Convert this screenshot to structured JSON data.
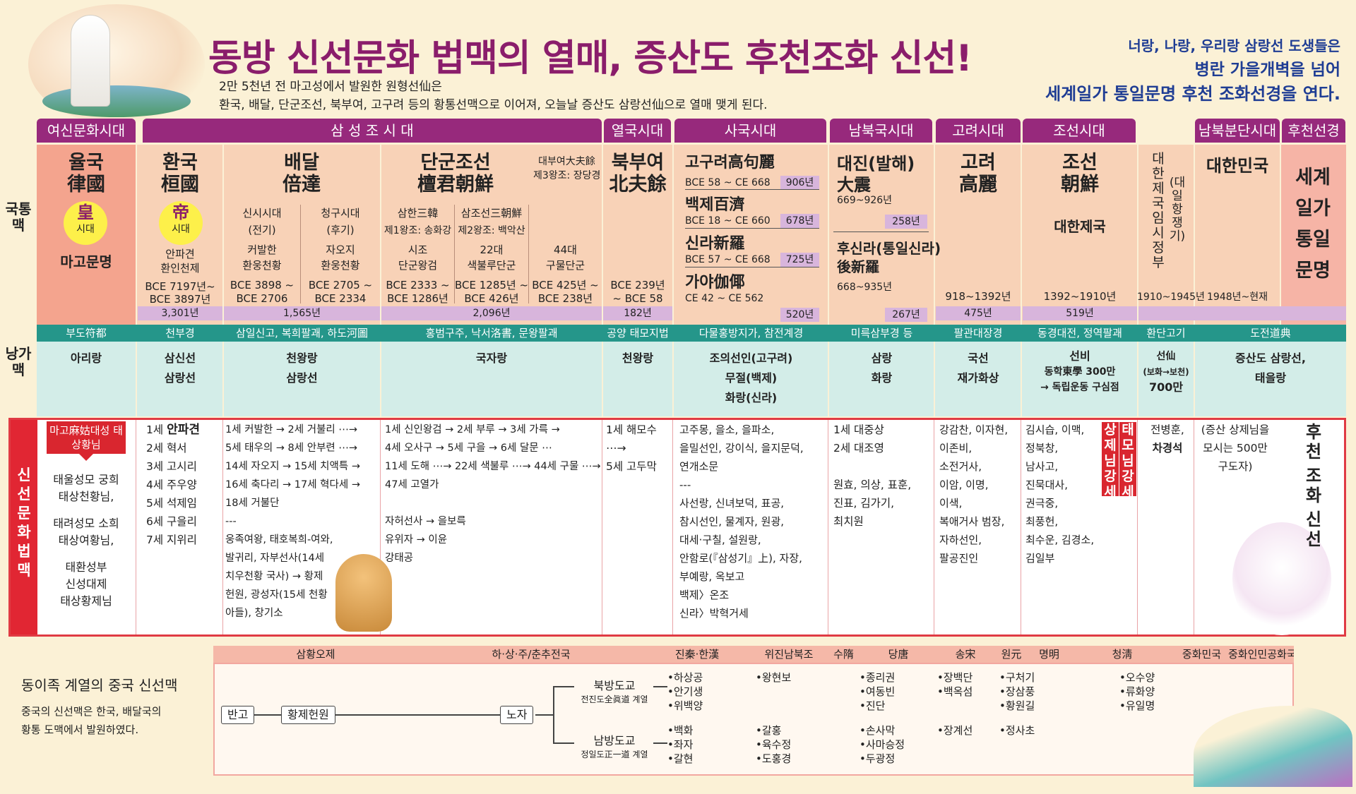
{
  "header": {
    "title": "동방 신선문화 법맥의 열매, 증산도 후천조화 신선!",
    "subtitle1": "2만 5천년 전 마고성에서 발원한 원형선仙은",
    "subtitle2": "환국, 배달, 단군조선, 북부여, 고구려 등의 황통선맥으로 이어져, 오늘날 증산도 삼랑선仙으로 열매 맺게 된다.",
    "right_lines": [
      "너랑, 나랑, 우리랑 삼랑선 도생들은",
      "병란 가을개벽을 넘어",
      "세계일가 통일문명 후천 조화선경을 연다."
    ]
  },
  "row_labels": {
    "national": "국통맥",
    "nangga": "낭가맥",
    "sinseon": "신선문화 법맥"
  },
  "eras": [
    "여신문화시대",
    "삼 성 조 시 대",
    "열국시대",
    "사국시대",
    "남북국시대",
    "고려시대",
    "조선시대",
    "",
    "남북분단시대",
    "후천선경"
  ],
  "nations": {
    "yulguk": {
      "name": "율국",
      "hanja": "律國",
      "circle_main": "皇",
      "circle_sub": "시대",
      "culture": "마고문명"
    },
    "hwanguk": {
      "name": "환국",
      "hanja": "桓國",
      "circle_main": "帝",
      "circle_sub": "시대",
      "ruler": "안파견",
      "ruler2": "환인천제",
      "years1": "BCE 7197년~",
      "years2": "BCE 3897년",
      "dur": "3,301년"
    },
    "baedal": {
      "name": "배달",
      "hanja": "倍達",
      "p1": "신시시대",
      "p1s": "(전기)",
      "p1a": "커발한",
      "p1b": "환웅천황",
      "p1y1": "BCE 3898 ~",
      "p1y2": "BCE 2706",
      "p2": "청구시대",
      "p2s": "(후기)",
      "p2a": "자오지",
      "p2b": "환웅천황",
      "p2y1": "BCE 2705 ~",
      "p2y2": "BCE 2334",
      "dur": "1,565년"
    },
    "dangun": {
      "name": "단군조선",
      "hanja": "檀君朝鮮",
      "bubuyeo": "대부여大夫餘",
      "bubuyeo2": "제3왕조: 장당경",
      "c1": "삼한三韓",
      "c1s": "제1왕조: 송화강",
      "c1a": "시조",
      "c1b": "단군왕검",
      "c1y1": "BCE 2333 ~",
      "c1y2": "BCE 1286년",
      "c2": "삼조선三朝鮮",
      "c2s": "제2왕조: 백악산",
      "c2a": "22대",
      "c2b": "색불루단군",
      "c2y1": "BCE 1285년 ~",
      "c2y2": "BCE 426년",
      "c3a": "44대",
      "c3b": "구물단군",
      "c3y1": "BCE 425년 ~",
      "c3y2": "BCE 238년",
      "dur": "2,096년"
    },
    "bukbuyeo": {
      "name": "북부여",
      "hanja": "北夫餘",
      "y1": "BCE 239년",
      "y2": "~ BCE 58",
      "dur": "182년"
    },
    "four": {
      "goguryeo": "고구려高句麗",
      "g_y": "BCE 58 ~ CE 668",
      "g_d": "906년",
      "baekje": "백제百濟",
      "b_y": "BCE 18 ~ CE 660",
      "b_d": "678년",
      "silla": "신라新羅",
      "s_y": "BCE 57 ~ CE 668",
      "s_d": "725년",
      "gaya": "가야伽倻",
      "ga_y": "CE 42 ~ CE 562",
      "ga_d": "520년"
    },
    "nb": {
      "name": "대진(발해)",
      "hanja": "大震",
      "y": "669~926년",
      "d": "258년",
      "name2": "후신라(통일신라)",
      "hanja2": "後新羅",
      "y2": "668~935년",
      "d2": "267년"
    },
    "goryeo": {
      "name": "고려",
      "hanja": "高麗",
      "y": "918~1392년",
      "d": "475년"
    },
    "joseon": {
      "name": "조선",
      "hanja": "朝鮮",
      "sub": "대한제국",
      "y": "1392~1910년",
      "d": "519년"
    },
    "provisional": {
      "name": "대한제국임시정부",
      "sub": "(대일항쟁기)",
      "y": "1910~1945년"
    },
    "korea": {
      "name": "대한민국",
      "y": "1948년~현재"
    },
    "world": {
      "lines": [
        "세계",
        "일가",
        "통일",
        "문명"
      ]
    }
  },
  "nangga_teal": [
    "부도符都",
    "천부경",
    "삼일신고, 복희팔괘, 하도河圖",
    "홍범구주, 낙서洛書, 문왕팔괘",
    "공양 태모지법",
    "다물홍방지가, 참전계경",
    "미륵삼부경 등",
    "팔관대장경",
    "동경대전, 정역팔괘",
    "환단고기",
    "도전道典"
  ],
  "nangga": {
    "a": [
      "아리랑"
    ],
    "b": [
      "삼신선",
      "삼랑선"
    ],
    "c": [
      "천왕랑",
      "삼랑선"
    ],
    "d": [
      "국자랑"
    ],
    "e": [
      "천왕랑"
    ],
    "f": [
      "조의선인(고구려)",
      "무절(백제)",
      "화랑(신라)"
    ],
    "g": [
      "삼랑",
      "화랑"
    ],
    "h": [
      "국선",
      "재가화상"
    ],
    "i": [
      "선비",
      "동학東學 300만",
      "→ 독립운동 구심점"
    ],
    "j": [
      "선仙",
      "(보화→보천)",
      "700만"
    ],
    "k": [
      "증산도 삼랑선,",
      "태을랑"
    ]
  },
  "sinseon": {
    "mago_head": "마고麻姑대성 태상황님",
    "mago_list": [
      "태울성모 궁희",
      "태상천황님,",
      "태려성모 소희",
      "태상여황님,",
      "태환성부",
      "신성대제",
      "태상황제님"
    ],
    "hwanguk": [
      [
        "1세 ",
        "안파견"
      ],
      [
        "2세 혁서",
        ""
      ],
      [
        "3세 고시리",
        ""
      ],
      [
        "4세 주우양",
        ""
      ],
      [
        "5세 석제임",
        ""
      ],
      [
        "6세 구을리",
        ""
      ],
      [
        "7세 지위리",
        ""
      ]
    ],
    "baedal": [
      "1세 커발한 → 2세 거불리 ⋯→",
      "5세 태우의 → 8세 안부련 ⋯→",
      "14세 자오지 → 15세 치액특 →",
      "16세 축다리 → 17세 혁다세 →",
      "18세 거불단",
      "---",
      "웅족여왕, 태호복희-여와,",
      "발귀리, 자부선사(14세",
      "치우천황 국사) → 황제",
      "헌원, 광성자(15세 천황",
      "아들), 창기소"
    ],
    "dangun": [
      "1세 신인왕검 → 2세 부루 → 3세 가륵 →",
      "4세 오사구 → 5세 구을 → 6세 달문 ⋯",
      "11세 도해 ⋯→ 22세 색불루 ⋯→ 44세 구물 ⋯→",
      "47세 고열가",
      "",
      "자허선사 → 을보륵",
      "유위자 → 이윤",
      "강태공"
    ],
    "bukbuyeo": [
      "1세 해모수",
      "⋯→",
      "5세 고두막"
    ],
    "four": [
      "고주몽, 을소, 을파소,",
      "을밀선인, 강이식, 을지문덕,",
      "연개소문",
      "---",
      "사선랑, 신녀보덕, 표공,",
      "참시선인, 물계자, 원광,",
      "대세·구칠, 설원랑,",
      "안함로(『삼성기』上), 자장,",
      "부예랑, 옥보고",
      "백제〉온조",
      "신라〉박혁거세"
    ],
    "nb": [
      "1세 대중상",
      "2세 대조영",
      "",
      "원효, 의상, 표훈,",
      "진표, 김가기,",
      "최치원"
    ],
    "goryeo": [
      "강감찬, 이자현,",
      "이존비,",
      "소전거사,",
      "이암, 이명,",
      "이색,",
      "복애거사 범장,",
      "자하선인,",
      "팔공진인"
    ],
    "joseon": [
      "김시습, 이맥,",
      "정북창,",
      "남사고,",
      "진묵대사,",
      "권극중,",
      "최풍헌,",
      "최수운, 김경소,",
      "김일부"
    ],
    "tags": [
      "태모님 강세",
      "상제님 강세"
    ],
    "prov": [
      "전병훈,",
      "차경석"
    ],
    "korea": [
      "(증산 상제님을",
      "모시는 500만",
      "구도자)"
    ],
    "world": [
      "후",
      "천",
      "조",
      "화",
      "신",
      "선"
    ]
  },
  "china": {
    "left_title": "동이족 계열의 중국 신선맥",
    "left_text": [
      "중국의 신선맥은 한국, 배달국의",
      "황통 도맥에서 발원하였다."
    ],
    "eras": [
      "삼황오제",
      "하·상·주/춘추전국",
      "진秦·한漢",
      "위진남북조",
      "수隋",
      "당唐",
      "송宋",
      "원元",
      "명明",
      "청淸",
      "중화민국",
      "중화인민공화국"
    ],
    "nodes": {
      "a": "반고",
      "b": "황제헌원",
      "c": "노자"
    },
    "north": {
      "t": "북방도교",
      "s": "전진도全眞道 계열"
    },
    "south": {
      "t": "남방도교",
      "s": "정일도正一道 계열"
    },
    "north_lists": [
      [
        "•하상공",
        "•안기생",
        "•위백양"
      ],
      [
        "•왕현보"
      ],
      [
        "•종리권",
        "•여동빈",
        "•진단"
      ],
      [
        "•장백단",
        "•백옥섬"
      ],
      [
        "•구처기",
        "•장삼풍",
        "•황원길"
      ],
      [
        "•오수양",
        "•류화양",
        "•유일명"
      ]
    ],
    "south_lists": [
      [
        "•백화",
        "•좌자",
        "•갈현"
      ],
      [
        "•갈홍",
        "•육수정",
        "•도홍경"
      ],
      [
        "•손사막",
        "•사마승정",
        "•두광정"
      ],
      [
        "•장계선"
      ],
      [
        "•정사초"
      ]
    ]
  }
}
